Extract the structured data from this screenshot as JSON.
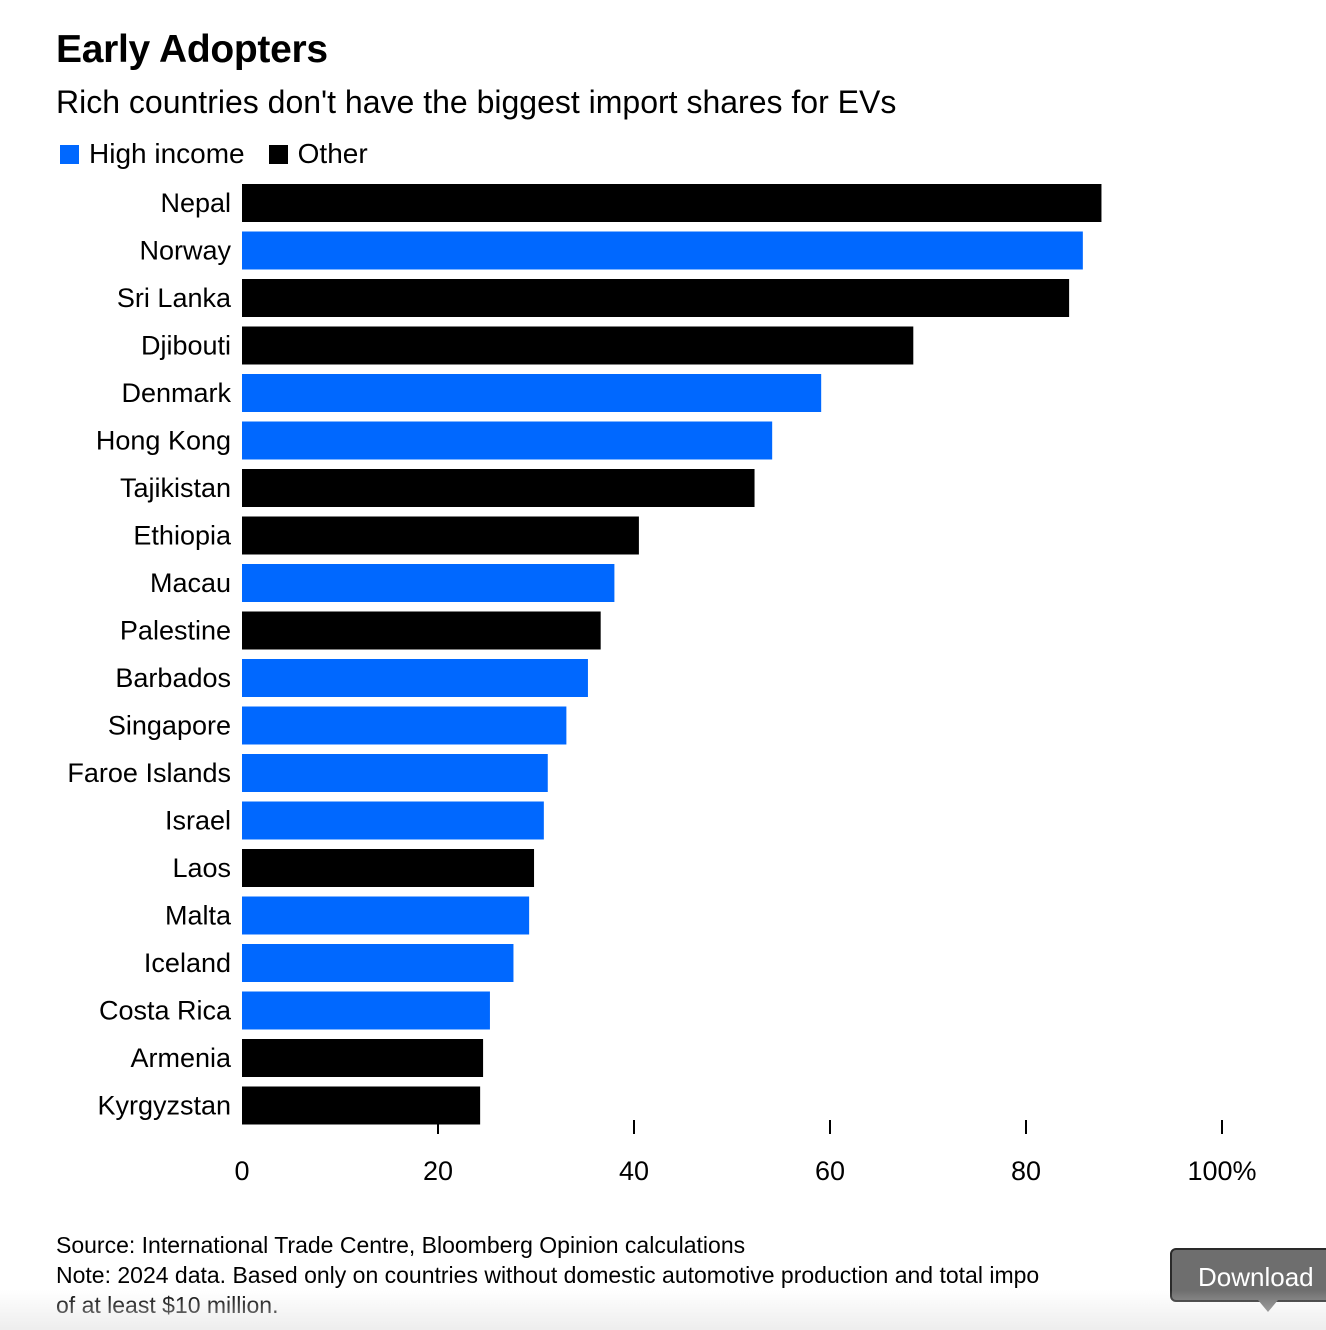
{
  "header": {
    "title": "Early Adopters",
    "subtitle": "Rich countries don't have the biggest import shares for EVs"
  },
  "legend": [
    {
      "label": "High income",
      "color": "#0068ff"
    },
    {
      "label": "Other",
      "color": "#000000"
    }
  ],
  "chart_data": {
    "type": "bar",
    "orientation": "horizontal",
    "categories": [
      "Nepal",
      "Norway",
      "Sri Lanka",
      "Djibouti",
      "Denmark",
      "Hong Kong",
      "Tajikistan",
      "Ethiopia",
      "Macau",
      "Palestine",
      "Barbados",
      "Singapore",
      "Faroe Islands",
      "Israel",
      "Laos",
      "Malta",
      "Iceland",
      "Costa Rica",
      "Armenia",
      "Kyrgyzstan"
    ],
    "values": [
      87.7,
      85.8,
      84.4,
      68.5,
      59.1,
      54.1,
      52.3,
      40.5,
      38.0,
      36.6,
      35.3,
      33.1,
      31.2,
      30.8,
      29.8,
      29.3,
      27.7,
      25.3,
      24.6,
      24.3
    ],
    "groups": [
      "Other",
      "High income",
      "Other",
      "Other",
      "High income",
      "High income",
      "Other",
      "Other",
      "High income",
      "Other",
      "High income",
      "High income",
      "High income",
      "High income",
      "Other",
      "High income",
      "High income",
      "High income",
      "Other",
      "Other"
    ],
    "colors": {
      "High income": "#0068ff",
      "Other": "#000000"
    },
    "xlim": [
      0,
      100
    ],
    "xticks": [
      {
        "value": 0,
        "label": "0"
      },
      {
        "value": 20,
        "label": "20"
      },
      {
        "value": 40,
        "label": "40"
      },
      {
        "value": 60,
        "label": "60"
      },
      {
        "value": 80,
        "label": "80"
      },
      {
        "value": 100,
        "label": "100%"
      }
    ],
    "grid": false,
    "legend_position": "top-left"
  },
  "footer": {
    "source": "Source: International Trade Centre, Bloomberg Opinion calculations",
    "note_line1": "Note: 2024 data. Based only on countries without domestic automotive production and total impo",
    "note_line2": "of at least $10 million."
  },
  "download_button": {
    "label": "Download"
  }
}
